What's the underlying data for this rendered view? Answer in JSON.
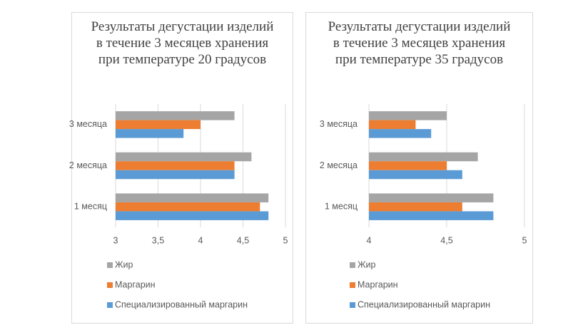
{
  "chart_data": [
    {
      "type": "bar",
      "orientation": "horizontal",
      "title": "Результаты дегустации изделий в течение 3 месяцев хранения при температуре 20 градусов",
      "categories": [
        "1 месяц",
        "2 месяца",
        "3 месяца"
      ],
      "series": [
        {
          "name": "Жир",
          "color": "#a5a5a5",
          "values": [
            4.8,
            4.6,
            4.4
          ]
        },
        {
          "name": "Маргарин",
          "color": "#ed7d31",
          "values": [
            4.7,
            4.4,
            4.0
          ]
        },
        {
          "name": "Специализированный маргарин",
          "color": "#5b9bd5",
          "values": [
            4.8,
            4.4,
            3.8
          ]
        }
      ],
      "xlim": [
        3,
        5
      ],
      "xticks": [
        3,
        {
          "value": 3.5,
          "label": "3,5"
        },
        4,
        {
          "value": 4.5,
          "label": "4,5"
        },
        5
      ],
      "grid": true,
      "legend": "bottom"
    },
    {
      "type": "bar",
      "orientation": "horizontal",
      "title": "Результаты дегустации изделий в течение 3 месяцев хранения при температуре 35 градусов",
      "categories": [
        "1 месяц",
        "2 месяца",
        "3 месяца"
      ],
      "series": [
        {
          "name": "Жир",
          "color": "#a5a5a5",
          "values": [
            4.8,
            4.7,
            4.5
          ]
        },
        {
          "name": "Маргарин",
          "color": "#ed7d31",
          "values": [
            4.6,
            4.5,
            4.3
          ]
        },
        {
          "name": "Специализированный маргарин",
          "color": "#5b9bd5",
          "values": [
            4.8,
            4.6,
            4.4
          ]
        }
      ],
      "xlim": [
        4,
        5
      ],
      "xticks": [
        4,
        {
          "value": 4.5,
          "label": "4,5"
        },
        5
      ],
      "grid": true,
      "legend": "bottom"
    }
  ]
}
